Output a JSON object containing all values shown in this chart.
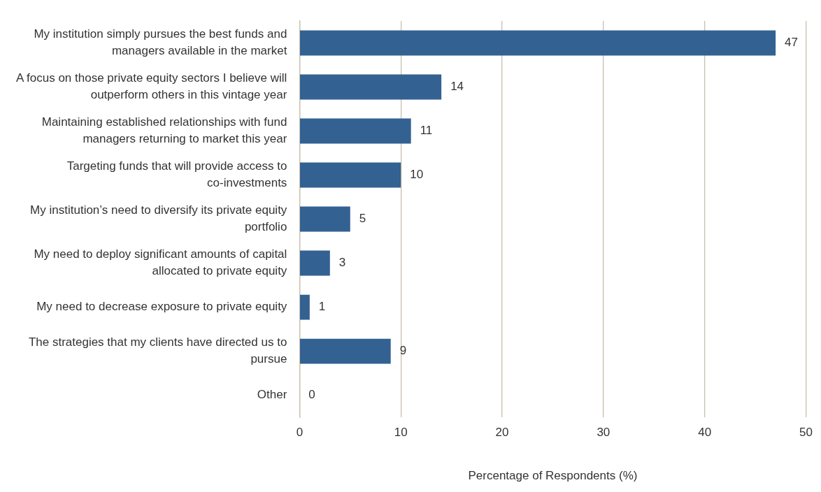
{
  "chart_data": {
    "type": "bar",
    "orientation": "horizontal",
    "xlabel": "Percentage of Respondents (%)",
    "categories": [
      "My institution simply pursues the best funds and managers available in the market",
      "A focus on those private equity sectors I believe will outperform others in this vintage year",
      "Maintaining established relationships with fund managers returning to market this year",
      "Targeting funds that will provide access to co-investments",
      "My institution’s need to diversify its private equity portfolio",
      "My need to deploy significant amounts of capital allocated to private equity",
      "My need to decrease exposure to private equity",
      "The strategies that my clients have directed us to pursue",
      "Other"
    ],
    "values": [
      47,
      14,
      11,
      10,
      5,
      3,
      1,
      9,
      0
    ],
    "color": "#336192",
    "xlim": [
      0,
      50
    ],
    "xticks": [
      0,
      10,
      20,
      30,
      40,
      50
    ],
    "grid": "x",
    "legend": false,
    "data_labels": true
  }
}
